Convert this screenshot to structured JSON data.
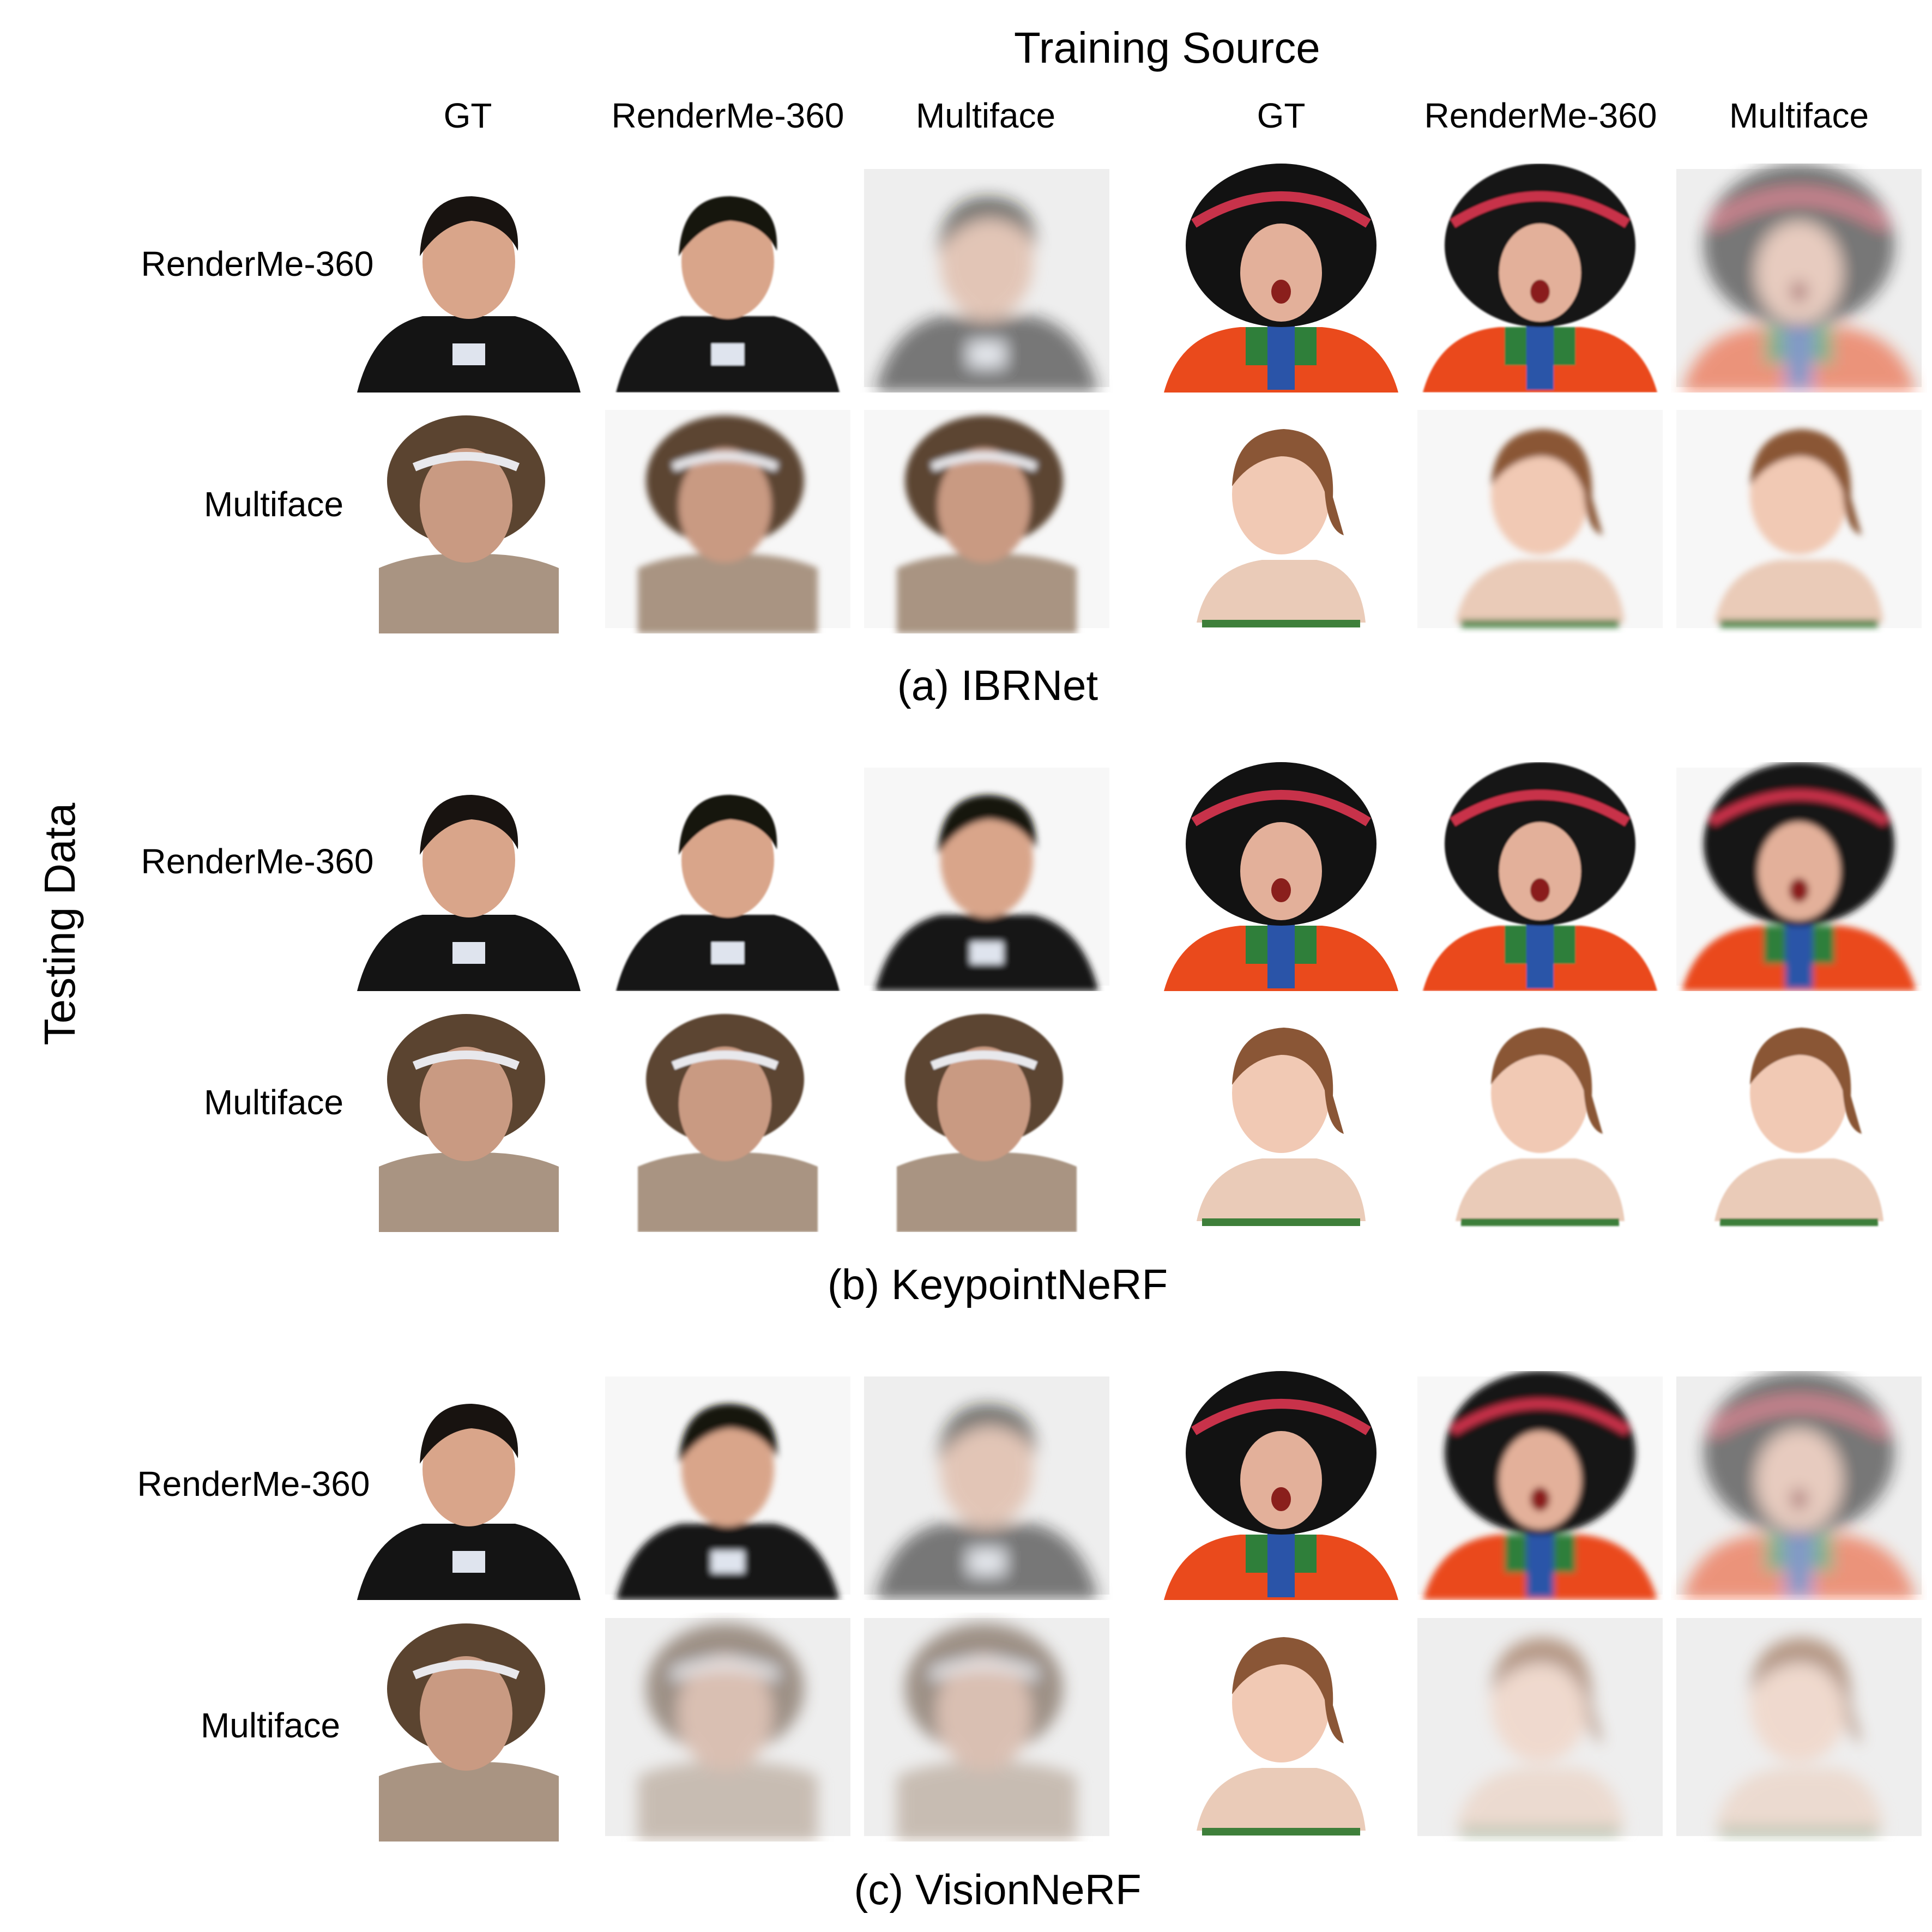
{
  "figure": {
    "training_source_title": "Training Source",
    "column_headers": [
      "GT",
      "RenderMe-360",
      "Multiface",
      "GT",
      "RenderMe-360",
      "Multiface"
    ],
    "testing_data_label": "Testing Data",
    "row_labels": {
      "renderme": "RenderMe-360",
      "multiface": "Multiface"
    },
    "panels": [
      {
        "caption": "(a) IBRNet"
      },
      {
        "caption": "(b) KeypointNeRF"
      },
      {
        "caption": "(c) VisionNeRF"
      }
    ]
  }
}
